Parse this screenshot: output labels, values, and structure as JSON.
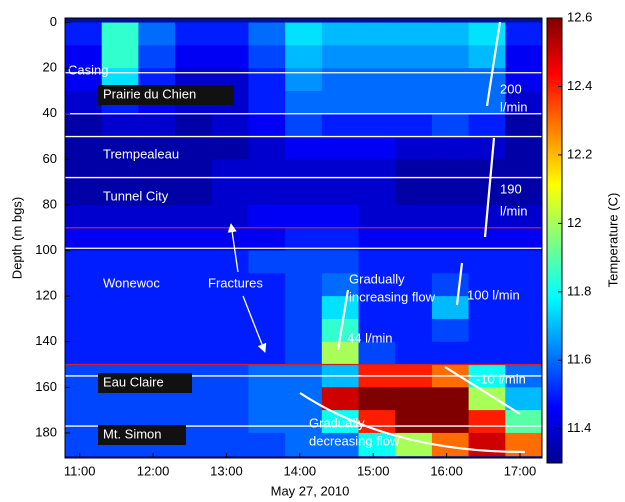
{
  "chart_data": {
    "type": "heatmap",
    "xlabel": "May 27, 2010",
    "ylabel": "Depth (m bgs)",
    "zlabel": "Temperature (C)",
    "colormap": "jet",
    "xlim": [
      10.8,
      17.3
    ],
    "ylim": [
      191,
      -2
    ],
    "zlim": [
      11.3,
      12.6
    ],
    "xticks": [
      {
        "value": 11,
        "label": "11:00"
      },
      {
        "value": 12,
        "label": "12:00"
      },
      {
        "value": 13,
        "label": "13:00"
      },
      {
        "value": 14,
        "label": "14:00"
      },
      {
        "value": 15,
        "label": "15:00"
      },
      {
        "value": 16,
        "label": "16:00"
      },
      {
        "value": 17,
        "label": "17:00"
      }
    ],
    "yticks": [
      0,
      20,
      40,
      60,
      80,
      100,
      120,
      140,
      160,
      180
    ],
    "zticks": [
      11.4,
      11.6,
      11.8,
      12,
      12.2,
      12.4,
      12.6
    ],
    "x_edges": [
      10.8,
      11.3,
      11.8,
      12.3,
      12.8,
      13.3,
      13.8,
      14.3,
      14.8,
      15.3,
      15.8,
      16.3,
      16.8,
      17.3
    ],
    "y_edges": [
      0,
      10,
      20,
      30,
      40,
      50,
      60,
      70,
      80,
      90,
      100,
      110,
      120,
      130,
      140,
      150,
      160,
      170,
      180,
      190
    ],
    "z": [
      [
        11.5,
        11.85,
        11.6,
        11.5,
        11.5,
        11.6,
        11.75,
        11.7,
        11.7,
        11.7,
        11.7,
        11.75,
        11.5
      ],
      [
        11.45,
        11.85,
        11.55,
        11.45,
        11.45,
        11.55,
        11.7,
        11.65,
        11.65,
        11.65,
        11.65,
        11.7,
        11.45
      ],
      [
        11.45,
        11.75,
        11.5,
        11.4,
        11.4,
        11.5,
        11.65,
        11.6,
        11.6,
        11.6,
        11.6,
        11.6,
        11.45
      ],
      [
        11.4,
        11.5,
        11.45,
        11.4,
        11.4,
        11.5,
        11.6,
        11.6,
        11.6,
        11.6,
        11.6,
        11.6,
        11.4
      ],
      [
        11.35,
        11.4,
        11.4,
        11.35,
        11.4,
        11.45,
        11.55,
        11.5,
        11.5,
        11.5,
        11.55,
        11.5,
        11.35
      ],
      [
        11.35,
        11.35,
        11.35,
        11.35,
        11.35,
        11.4,
        11.45,
        11.45,
        11.45,
        11.4,
        11.4,
        11.4,
        11.35
      ],
      [
        11.35,
        11.35,
        11.35,
        11.35,
        11.4,
        11.4,
        11.4,
        11.4,
        11.4,
        11.35,
        11.35,
        11.35,
        11.35
      ],
      [
        11.35,
        11.35,
        11.35,
        11.35,
        11.4,
        11.4,
        11.4,
        11.4,
        11.4,
        11.35,
        11.35,
        11.35,
        11.35
      ],
      [
        11.4,
        11.4,
        11.4,
        11.4,
        11.4,
        11.45,
        11.45,
        11.45,
        11.4,
        11.4,
        11.4,
        11.4,
        11.4
      ],
      [
        11.45,
        11.45,
        11.45,
        11.45,
        11.45,
        11.45,
        11.5,
        11.5,
        11.45,
        11.45,
        11.45,
        11.45,
        11.45
      ],
      [
        11.5,
        11.5,
        11.5,
        11.5,
        11.5,
        11.55,
        11.55,
        11.55,
        11.5,
        11.5,
        11.5,
        11.5,
        11.5
      ],
      [
        11.5,
        11.5,
        11.5,
        11.5,
        11.5,
        11.5,
        11.55,
        11.6,
        11.5,
        11.5,
        11.55,
        11.5,
        11.5
      ],
      [
        11.5,
        11.5,
        11.5,
        11.5,
        11.5,
        11.5,
        11.55,
        11.75,
        11.5,
        11.5,
        11.7,
        11.5,
        11.5
      ],
      [
        11.5,
        11.5,
        11.5,
        11.5,
        11.5,
        11.5,
        11.55,
        11.85,
        11.5,
        11.5,
        11.55,
        11.5,
        11.5
      ],
      [
        11.5,
        11.5,
        11.5,
        11.5,
        11.5,
        11.5,
        11.55,
        12.0,
        11.55,
        11.5,
        11.5,
        11.5,
        11.5
      ],
      [
        11.55,
        11.55,
        11.55,
        11.55,
        11.55,
        11.6,
        11.6,
        11.7,
        12.4,
        12.4,
        12.3,
        11.8,
        11.6
      ],
      [
        11.55,
        11.55,
        11.55,
        11.55,
        11.55,
        11.6,
        11.6,
        12.5,
        12.6,
        12.6,
        12.6,
        12.0,
        11.7
      ],
      [
        11.55,
        11.55,
        11.55,
        11.55,
        11.55,
        11.6,
        11.6,
        11.8,
        12.4,
        12.6,
        12.6,
        12.4,
        11.9
      ],
      [
        11.55,
        11.55,
        11.55,
        11.55,
        11.55,
        11.55,
        11.6,
        11.6,
        11.8,
        12.0,
        12.3,
        12.5,
        12.3
      ]
    ],
    "boundaries": [
      {
        "depth": 22,
        "color": "#ffffff"
      },
      {
        "depth": 40,
        "color": "#ffffff"
      },
      {
        "depth": 50,
        "color": "#ffffff"
      },
      {
        "depth": 68,
        "color": "#ffffff"
      },
      {
        "depth": 90,
        "color": "#d0202a"
      },
      {
        "depth": 99,
        "color": "#ffffff"
      },
      {
        "depth": 150,
        "color": "#d0202a"
      },
      {
        "depth": 155,
        "color": "#ffffff"
      },
      {
        "depth": 177,
        "color": "#ffffff"
      }
    ],
    "annotations": [
      {
        "lines": [
          "Casing"
        ]
      },
      {
        "lines": [
          "Prairie du Chien"
        ]
      },
      {
        "lines": [
          "Trempealeau"
        ]
      },
      {
        "lines": [
          "Tunnel City"
        ]
      },
      {
        "lines": [
          "Wonewoc"
        ]
      },
      {
        "lines": [
          "Fractures"
        ]
      },
      {
        "lines": [
          "Gradually",
          "increasing flow"
        ]
      },
      {
        "lines": [
          "100 l/min"
        ]
      },
      {
        "lines": [
          "44 l/min"
        ]
      },
      {
        "lines": [
          "200",
          "l/min"
        ]
      },
      {
        "lines": [
          "190",
          "l/min"
        ]
      },
      {
        "lines": [
          "-10 l/min"
        ]
      },
      {
        "lines": [
          "Eau Claire"
        ]
      },
      {
        "lines": [
          "Mt. Simon"
        ]
      },
      {
        "lines": [
          "Gradually",
          "decreasing flow"
        ]
      }
    ]
  }
}
